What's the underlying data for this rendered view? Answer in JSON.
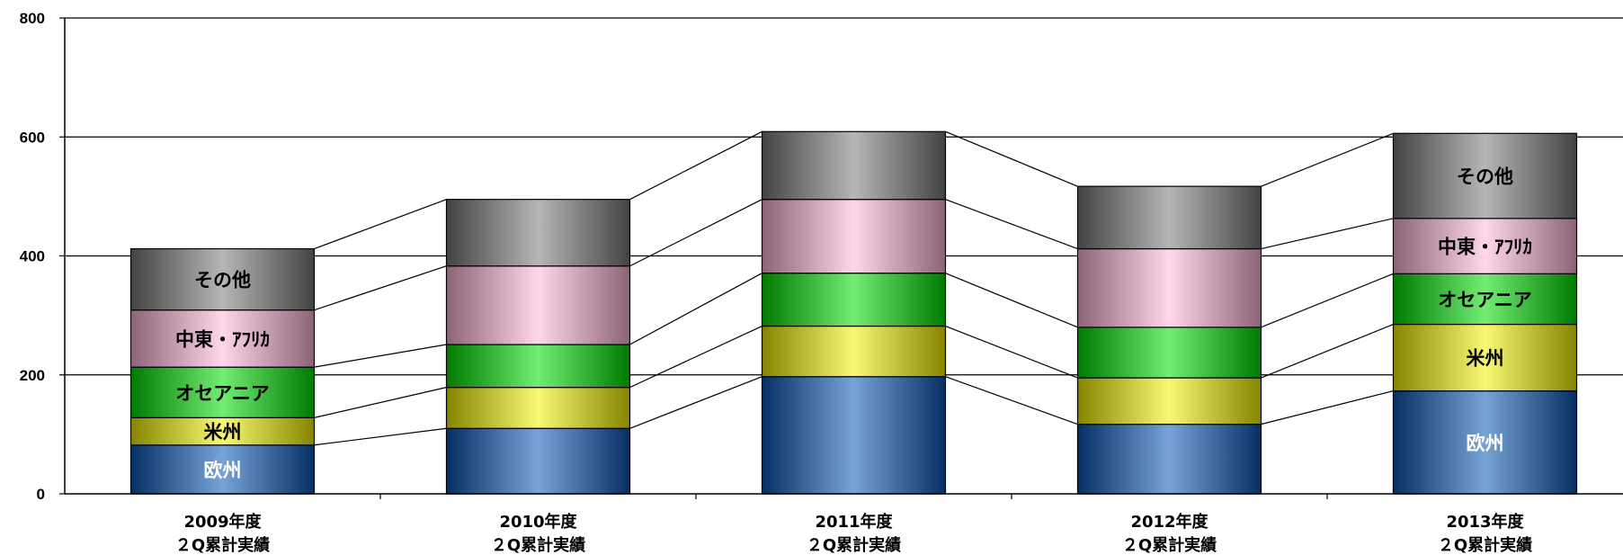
{
  "chart_data": {
    "type": "bar",
    "stacked": true,
    "title": "",
    "xlabel": "",
    "ylabel": "",
    "ylim": [
      0,
      800
    ],
    "yticks": [
      0,
      200,
      400,
      600,
      800
    ],
    "grid": true,
    "categories": [
      [
        "2009年度",
        "２Q累計実績"
      ],
      [
        "2010年度",
        "２Q累計実績"
      ],
      [
        "2011年度",
        "２Q累計実績"
      ],
      [
        "2012年度",
        "２Q累計実績"
      ],
      [
        "2013年度",
        "２Q累計実績"
      ]
    ],
    "series": [
      {
        "name": "欧州",
        "values": [
          82,
          110,
          197,
          117,
          173
        ],
        "color": "#0a57b5",
        "text_color": "#ffffff"
      },
      {
        "name": "米州",
        "values": [
          46,
          69,
          85,
          78,
          112
        ],
        "color": "#f2f200",
        "text_color": "#000000"
      },
      {
        "name": "オセアニア",
        "values": [
          85,
          72,
          89,
          85,
          85
        ],
        "color": "#00dd00",
        "text_color": "#000000"
      },
      {
        "name": "中東・ｱﾌﾘｶ",
        "values": [
          96,
          132,
          124,
          132,
          93
        ],
        "color": "#ffb6d9",
        "text_color": "#000000"
      },
      {
        "name": "その他",
        "values": [
          103,
          112,
          114,
          105,
          143
        ],
        "color": "#7a7a7a",
        "text_color": "#000000"
      }
    ],
    "segment_labels_shown_on": [
      0,
      4
    ]
  }
}
